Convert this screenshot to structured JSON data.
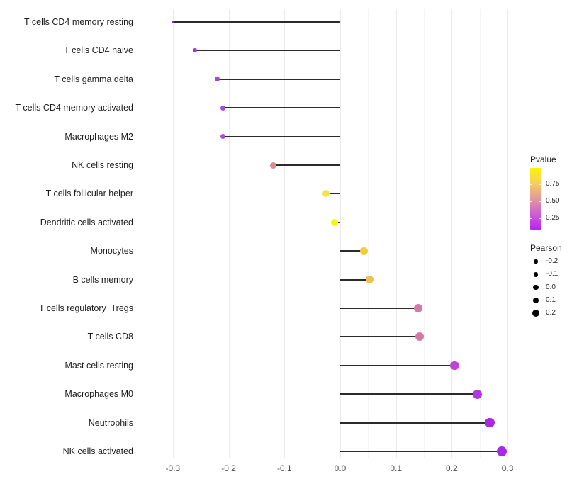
{
  "chart_data": {
    "type": "lollipop",
    "title": "",
    "xlabel": "",
    "ylabel": "",
    "xlim": [
      -0.35,
      0.35
    ],
    "x_ticks": [
      -0.3,
      -0.2,
      -0.1,
      0.0,
      0.1,
      0.2,
      0.3
    ],
    "x_tick_labels": [
      "-0.3",
      "-0.2",
      "-0.1",
      "0.0",
      "0.1",
      "0.2",
      "0.3"
    ],
    "x_minor_ticks": [
      -0.25,
      -0.15,
      -0.05,
      0.05,
      0.15,
      0.25
    ],
    "grid": true,
    "baseline": 0,
    "legend_position": "right",
    "series": [
      {
        "label": "T cells CD4 memory resting",
        "pearson": -0.3,
        "color": "#9d1fdf",
        "diameter": 4.5
      },
      {
        "label": "T cells CD4 naive",
        "pearson": -0.26,
        "color": "#a436da",
        "diameter": 6
      },
      {
        "label": "T cells gamma delta",
        "pearson": -0.22,
        "color": "#ab43d5",
        "diameter": 7
      },
      {
        "label": "T cells CD4 memory activated",
        "pearson": -0.21,
        "color": "#ad48d4",
        "diameter": 7
      },
      {
        "label": "Macrophages M2",
        "pearson": -0.21,
        "color": "#ad4ad2",
        "diameter": 7.5
      },
      {
        "label": "NK cells resting",
        "pearson": -0.12,
        "color": "#de8b90",
        "diameter": 9
      },
      {
        "label": "T cells follicular helper",
        "pearson": -0.025,
        "color": "#f3e44c",
        "diameter": 10
      },
      {
        "label": "Dendritic cells activated",
        "pearson": -0.01,
        "color": "#fbf50a",
        "diameter": 10
      },
      {
        "label": "Monocytes",
        "pearson": 0.043,
        "color": "#f2cc40",
        "diameter": 11
      },
      {
        "label": "B cells memory",
        "pearson": 0.053,
        "color": "#eec34d",
        "diameter": 11.5
      },
      {
        "label": "T cells regulatory  Tregs",
        "pearson": 0.14,
        "color": "#d779a8",
        "diameter": 12
      },
      {
        "label": "T cells CD8",
        "pearson": 0.142,
        "color": "#d878a6",
        "diameter": 12
      },
      {
        "label": "Mast cells resting",
        "pearson": 0.205,
        "color": "#bd44d7",
        "diameter": 12.5
      },
      {
        "label": "Macrophages M0",
        "pearson": 0.246,
        "color": "#b236de",
        "diameter": 13
      },
      {
        "label": "Neutrophils",
        "pearson": 0.268,
        "color": "#aa28e2",
        "diameter": 13.5
      },
      {
        "label": "NK cells activated",
        "pearson": 0.29,
        "color": "#a629e8",
        "diameter": 14.5
      }
    ]
  },
  "legends": {
    "pvalue": {
      "title": "Pvalue",
      "tick_labels": [
        "0.75",
        "0.50",
        "0.25"
      ],
      "gradient_stops": [
        "#fdf402",
        "#f5cf5e",
        "#e2989e",
        "#ca60d2",
        "#bb22f0"
      ]
    },
    "pearson": {
      "title": "Pearson",
      "dot_color": "#000000",
      "items": [
        {
          "label": "-0.2",
          "diameter": 5.5
        },
        {
          "label": "-0.1",
          "diameter": 6.5
        },
        {
          "label": "0.0",
          "diameter": 7.5
        },
        {
          "label": "0.1",
          "diameter": 8.5
        },
        {
          "label": "0.2",
          "diameter": 10
        }
      ]
    }
  }
}
